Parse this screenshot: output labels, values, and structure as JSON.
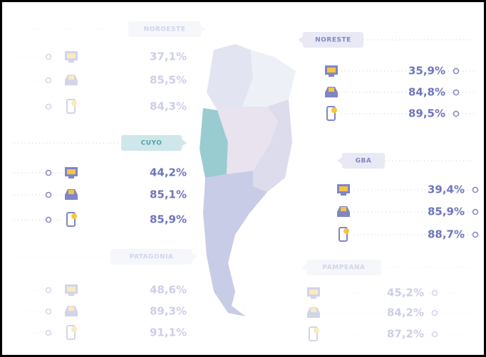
{
  "regions": [
    {
      "name": "NOROESTE",
      "stats": [
        "37,1%",
        "85,5%",
        "84,3%"
      ]
    },
    {
      "name": "NORESTE",
      "stats": [
        "35,9%",
        "84,8%",
        "89,5%"
      ]
    },
    {
      "name": "CUYO",
      "stats": [
        "44,2%",
        "85,1%",
        "85,9%"
      ]
    },
    {
      "name": "GBA",
      "stats": [
        "39,4%",
        "85,9%",
        "88,7%"
      ]
    },
    {
      "name": "PATAGONIA",
      "stats": [
        "48,6%",
        "89,3%",
        "91,1%"
      ]
    },
    {
      "name": "PAMPEANA",
      "stats": [
        "45,2%",
        "84,2%",
        "87,2%"
      ]
    }
  ]
}
